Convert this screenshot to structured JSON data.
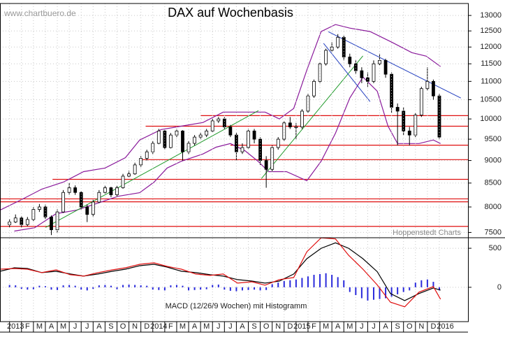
{
  "chart_data": [
    {
      "type": "candlestick",
      "title": "DAX auf Wochenbasis",
      "annotations": [
        "www.chartbuero.de",
        "Hoppenstedt Charts"
      ],
      "log_scale": true,
      "grid": true,
      "color": "#000000",
      "xlim": [
        -0.8,
        38.4
      ],
      "ylim": [
        7400,
        13400
      ],
      "yticks": [
        7500,
        8000,
        8500,
        9000,
        9500,
        10000,
        10500,
        11000,
        11500,
        12000,
        12500,
        13000
      ],
      "x": [
        0,
        0.5,
        1,
        1.5,
        2,
        2.5,
        3,
        3.5,
        4,
        4.5,
        5,
        5.5,
        6,
        6.5,
        7,
        7.5,
        8,
        8.5,
        9,
        9.5,
        10,
        10.5,
        11,
        11.5,
        12,
        12.5,
        13,
        13.5,
        14,
        14.5,
        15,
        15.5,
        16,
        16.5,
        17,
        17.5,
        18,
        18.5,
        19,
        19.5,
        20,
        20.5,
        21,
        21.5,
        22,
        22.5,
        23,
        23.5,
        24,
        24.5,
        25,
        25.5,
        26,
        26.5,
        27,
        27.5,
        28,
        28.5,
        29,
        29.5,
        30,
        30.5,
        31,
        31.5,
        32,
        32.5,
        33,
        33.5,
        34,
        34.5,
        35,
        35.5,
        36
      ],
      "open": [
        7650,
        7700,
        7780,
        7650,
        7750,
        7950,
        8000,
        7800,
        7550,
        7900,
        8300,
        8400,
        8300,
        8000,
        7850,
        8100,
        8300,
        8400,
        8250,
        8400,
        8650,
        8700,
        8900,
        9050,
        9200,
        9400,
        9700,
        9300,
        9600,
        9700,
        9200,
        9400,
        9550,
        9600,
        9700,
        9950,
        10000,
        9800,
        9600,
        9200,
        9300,
        9700,
        9500,
        9000,
        8800,
        9300,
        9500,
        9900,
        9800,
        9800,
        10200,
        10600,
        11000,
        11500,
        11900,
        12000,
        12300,
        11700,
        11500,
        11300,
        11100,
        11000,
        11500,
        11600,
        11200,
        10300,
        10200,
        9700,
        9600,
        10100,
        10800,
        11000,
        10600
      ],
      "high": [
        7760,
        7850,
        7820,
        7800,
        8000,
        8060,
        8050,
        7830,
        7950,
        8350,
        8500,
        8450,
        8330,
        8050,
        8150,
        8350,
        8450,
        8420,
        8450,
        8700,
        8770,
        8950,
        9100,
        9250,
        9450,
        9750,
        9720,
        9650,
        9750,
        9720,
        9450,
        9600,
        9650,
        9750,
        10000,
        10050,
        10050,
        9850,
        9650,
        9400,
        9750,
        9750,
        9550,
        9100,
        9350,
        9550,
        9950,
        10050,
        9900,
        10250,
        10650,
        11050,
        11550,
        11950,
        12150,
        12400,
        12350,
        11800,
        11600,
        11400,
        11250,
        11600,
        11800,
        11650,
        11250,
        10400,
        10300,
        9800,
        10150,
        10850,
        11400,
        11050,
        10650
      ],
      "low": [
        7600,
        7680,
        7600,
        7620,
        7720,
        7900,
        7760,
        7450,
        7500,
        7880,
        8250,
        8250,
        7950,
        7700,
        7800,
        8080,
        8280,
        8200,
        8200,
        8380,
        8620,
        8680,
        8850,
        9000,
        9150,
        9380,
        9250,
        9280,
        9550,
        9000,
        9150,
        9350,
        9500,
        9550,
        9680,
        9900,
        9750,
        9550,
        9000,
        9150,
        9280,
        9400,
        8900,
        8400,
        8750,
        9250,
        9450,
        9750,
        9500,
        9750,
        10150,
        10550,
        10950,
        11450,
        11850,
        11950,
        11600,
        11400,
        11200,
        10950,
        10850,
        10950,
        11450,
        11100,
        10150,
        9350,
        9600,
        9350,
        9550,
        10050,
        10750,
        10500,
        9500
      ],
      "close": [
        7700,
        7780,
        7650,
        7750,
        7950,
        8000,
        7800,
        7550,
        7900,
        8300,
        8400,
        8300,
        8000,
        7850,
        8100,
        8300,
        8400,
        8250,
        8400,
        8650,
        8700,
        8900,
        9050,
        9200,
        9400,
        9700,
        9300,
        9600,
        9700,
        9200,
        9400,
        9550,
        9600,
        9700,
        9950,
        10000,
        9800,
        9600,
        9200,
        9300,
        9700,
        9500,
        9000,
        8800,
        9300,
        9500,
        9900,
        9800,
        9800,
        10200,
        10600,
        11000,
        11500,
        11900,
        12000,
        12300,
        11700,
        11500,
        11300,
        11100,
        11000,
        11500,
        11600,
        11200,
        10300,
        10200,
        9700,
        9600,
        10100,
        10800,
        11000,
        10600,
        9550
      ],
      "bands": [
        {
          "color": "#8a1a9b",
          "x": [
            -0.8,
            1.0,
            2.7,
            4.5,
            6.2,
            8.0,
            9.7,
            10.9,
            12.7,
            14.4,
            16.2,
            17.9,
            19.7,
            21.4,
            22.6,
            23.8,
            24.9,
            26.1,
            27.3,
            28.5,
            30.2,
            32.0,
            33.7,
            34.9,
            36.1
          ],
          "values": [
            7935,
            8150,
            8370,
            8520,
            8750,
            8830,
            9065,
            9480,
            9735,
            9820,
            9910,
            10175,
            10175,
            10175,
            10000,
            10270,
            11320,
            12480,
            12703,
            12590,
            12480,
            12150,
            11830,
            11725,
            11420
          ]
        },
        {
          "color": "#8a1a9b",
          "x": [
            0.4,
            2.1,
            3.9,
            5.6,
            7.4,
            9.1,
            10.9,
            12.1,
            13.2,
            14.4,
            16.2,
            17.3,
            18.5,
            19.7,
            20.8,
            21.7,
            23.2,
            24.9,
            26.1,
            27.3,
            28.5,
            29.6,
            30.8,
            31.7,
            32.5,
            34.3,
            35.5,
            36.1
          ],
          "values": [
            7525,
            7590,
            7865,
            7935,
            8080,
            8220,
            8295,
            8520,
            8830,
            8985,
            9150,
            9310,
            9395,
            9230,
            8985,
            8750,
            8750,
            8550,
            8985,
            9645,
            10545,
            11120,
            10730,
            9820,
            9395,
            9395,
            9480,
            9395
          ]
        }
      ],
      "levels": {
        "color": "#e01010",
        "values": [
          10085,
          9818,
          9357,
          9020,
          8580,
          8166,
          8105,
          7616
        ],
        "start": [
          16.0,
          11.4,
          18.5,
          10.9,
          3.6,
          -0.8,
          -0.8,
          -0.8
        ]
      },
      "trendlines": [
        {
          "color": "#1f9a2a",
          "x": [
            3.0,
            20.85
          ],
          "values": [
            7593,
            10213
          ]
        },
        {
          "color": "#1f9a2a",
          "x": [
            21.1,
            29.6
          ],
          "values": [
            8598,
            11733
          ]
        },
        {
          "color": "#2540c0",
          "x": [
            26.7,
            37.8
          ],
          "values": [
            12476,
            10545
          ]
        },
        {
          "color": "#2540c0",
          "x": [
            26.3,
            30.2
          ],
          "values": [
            12113,
            10450
          ]
        }
      ]
    },
    {
      "type": "line",
      "annotations": [
        "MACD (12/26/9 Wochen) mit Histogramm"
      ],
      "grid": true,
      "xlim": [
        -0.8,
        38.4
      ],
      "ylim": [
        -440,
        635
      ],
      "yticks": [
        0,
        500
      ],
      "xticks": [
        {
          "value": 0,
          "label": "2013"
        },
        {
          "value": 1,
          "label": "F"
        },
        {
          "value": 2,
          "label": "M"
        },
        {
          "value": 3,
          "label": "A"
        },
        {
          "value": 4,
          "label": "M"
        },
        {
          "value": 5,
          "label": "J"
        },
        {
          "value": 6,
          "label": "J"
        },
        {
          "value": 7,
          "label": "A"
        },
        {
          "value": 8,
          "label": "S"
        },
        {
          "value": 9,
          "label": "O"
        },
        {
          "value": 10,
          "label": "N"
        },
        {
          "value": 11,
          "label": "D"
        },
        {
          "value": 12,
          "label": "2014"
        },
        {
          "value": 13,
          "label": "F"
        },
        {
          "value": 14,
          "label": "M"
        },
        {
          "value": 15,
          "label": "A"
        },
        {
          "value": 16,
          "label": "M"
        },
        {
          "value": 17,
          "label": "J"
        },
        {
          "value": 18,
          "label": "J"
        },
        {
          "value": 19,
          "label": "A"
        },
        {
          "value": 20,
          "label": "S"
        },
        {
          "value": 21,
          "label": "O"
        },
        {
          "value": 22,
          "label": "N"
        },
        {
          "value": 23,
          "label": "D"
        },
        {
          "value": 24,
          "label": "2015"
        },
        {
          "value": 25,
          "label": "F"
        },
        {
          "value": 26,
          "label": "M"
        },
        {
          "value": 27,
          "label": "A"
        },
        {
          "value": 28,
          "label": "M"
        },
        {
          "value": 29,
          "label": "J"
        },
        {
          "value": 30,
          "label": "J"
        },
        {
          "value": 31,
          "label": "A"
        },
        {
          "value": 32,
          "label": "S"
        },
        {
          "value": 33,
          "label": "O"
        },
        {
          "value": 34,
          "label": "N"
        },
        {
          "value": 35,
          "label": "D"
        },
        {
          "value": 36,
          "label": "2016"
        }
      ],
      "histogram": {
        "color": "#2a2adb",
        "x": [
          0,
          0.5,
          1,
          1.5,
          2,
          2.5,
          3,
          3.5,
          4,
          4.5,
          5,
          5.5,
          6,
          6.5,
          7,
          7.5,
          8,
          8.5,
          9,
          9.5,
          10,
          10.5,
          11,
          11.5,
          12,
          12.5,
          13,
          13.5,
          14,
          14.5,
          15,
          15.5,
          16,
          16.5,
          17,
          17.5,
          18,
          18.5,
          19,
          19.5,
          20,
          20.5,
          21,
          21.5,
          22,
          22.5,
          23,
          23.5,
          24,
          24.5,
          25,
          25.5,
          26,
          26.5,
          27,
          27.5,
          28,
          28.5,
          29,
          29.5,
          30,
          30.5,
          31,
          31.5,
          32,
          32.5,
          33,
          33.5,
          34,
          34.5,
          35,
          35.5,
          36
        ],
        "values": [
          30,
          25,
          -20,
          -30,
          -25,
          20,
          15,
          -30,
          -35,
          25,
          30,
          20,
          -30,
          -40,
          -20,
          25,
          30,
          20,
          -25,
          30,
          35,
          30,
          25,
          20,
          -30,
          -35,
          -40,
          25,
          30,
          20,
          -40,
          -35,
          -30,
          -25,
          30,
          35,
          -30,
          -45,
          -50,
          -40,
          -35,
          -30,
          -40,
          -35,
          40,
          60,
          80,
          90,
          100,
          120,
          140,
          160,
          170,
          180,
          160,
          130,
          90,
          -60,
          -100,
          -140,
          -170,
          -160,
          -150,
          -140,
          -120,
          -90,
          -60,
          -40,
          60,
          90,
          100,
          70,
          -40
        ]
      },
      "series": [
        {
          "color": "#000000",
          "x": [
            -0.8,
            0.4,
            1.5,
            2.7,
            3.9,
            5.1,
            6.2,
            7.4,
            8.6,
            9.7,
            10.9,
            12.1,
            13.2,
            14.4,
            15.6,
            16.8,
            17.9,
            19.1,
            20.3,
            21.4,
            22.6,
            23.8,
            24.9,
            26.1,
            27.3,
            28.4,
            29.6,
            30.8,
            31.9,
            33.1,
            34.3,
            35.5,
            36.1
          ],
          "values": [
            205,
            250,
            241,
            188,
            205,
            170,
            143,
            170,
            205,
            232,
            277,
            295,
            259,
            205,
            188,
            161,
            143,
            98,
            80,
            54,
            80,
            170,
            366,
            500,
            570,
            500,
            366,
            200,
            -80,
            -170,
            -80,
            -9,
            -36
          ]
        },
        {
          "color": "#e01010",
          "x": [
            -0.8,
            0.4,
            1.5,
            2.7,
            3.9,
            5.1,
            6.2,
            7.4,
            8.6,
            9.7,
            10.9,
            12.1,
            13.2,
            14.4,
            15.6,
            16.8,
            17.9,
            19.1,
            20.3,
            21.4,
            22.6,
            23.8,
            24.9,
            26.1,
            27.3,
            28.4,
            29.6,
            30.8,
            31.9,
            33.1,
            34.3,
            35.5,
            36.1
          ],
          "values": [
            232,
            241,
            232,
            188,
            223,
            161,
            143,
            188,
            223,
            250,
            295,
            313,
            268,
            232,
            170,
            152,
            170,
            54,
            71,
            27,
            98,
            125,
            455,
            634,
            620,
            410,
            232,
            30,
            -190,
            -250,
            -62,
            9,
            -152
          ]
        }
      ]
    }
  ]
}
